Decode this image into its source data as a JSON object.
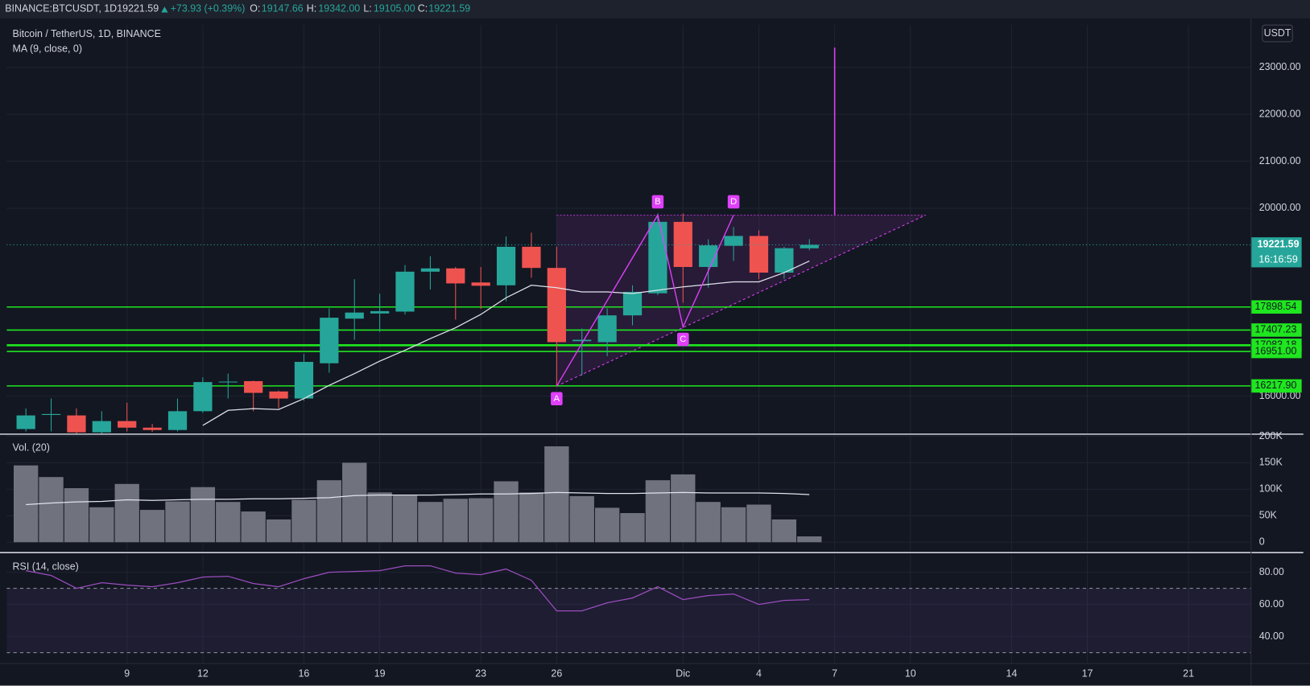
{
  "header": {
    "symbol": "BINANCE:BTCUSDT, 1D",
    "last": "19221.59",
    "change": "+73.93 (+0.39%)",
    "o_label": "O:",
    "o": "19147.66",
    "h_label": "H:",
    "h": "19342.00",
    "l_label": "L:",
    "l": "19105.00",
    "c_label": "C:",
    "c": "19221.59"
  },
  "chart_data": [
    {
      "type": "candlestick",
      "title": "Bitcoin / TetherUS, 1D, BINANCE",
      "currency": "USDT",
      "up_color": "#26a69a",
      "down_color": "#ef5350",
      "candles": {
        "open": [
          15300,
          15600,
          15590,
          15230,
          15470,
          15330,
          15280,
          15680,
          16300,
          16320,
          16100,
          15950,
          16700,
          17650,
          17760,
          17800,
          18650,
          18720,
          18420,
          18360,
          19180,
          18730,
          17170,
          17150,
          17720,
          18190,
          19710,
          18750,
          19200,
          19410,
          18630,
          19147.66
        ],
        "high": [
          15740,
          15950,
          15740,
          15680,
          15860,
          15410,
          15950,
          16400,
          16480,
          16330,
          16120,
          16900,
          17870,
          18490,
          18180,
          18790,
          18980,
          18750,
          18750,
          19400,
          19480,
          19180,
          17440,
          17870,
          18360,
          19890,
          19890,
          19340,
          19600,
          19530,
          19180,
          19342
        ],
        "low": [
          15250,
          15250,
          15200,
          15200,
          15250,
          15240,
          15250,
          15650,
          15950,
          15680,
          15740,
          15900,
          16500,
          17200,
          17370,
          17740,
          18270,
          17630,
          17860,
          18020,
          18520,
          16210,
          16440,
          16850,
          17510,
          18150,
          17990,
          18310,
          18880,
          18490,
          18500,
          19105
        ],
        "close": [
          15590,
          15620,
          15230,
          15470,
          15330,
          15280,
          15680,
          16300,
          16310,
          16070,
          15950,
          16730,
          17670,
          17780,
          17810,
          18650,
          18720,
          18400,
          18350,
          19180,
          18730,
          17150,
          17200,
          17720,
          18220,
          19710,
          18750,
          19210,
          19410,
          18630,
          19150,
          19221.59
        ]
      },
      "series": [
        {
          "name": "MA (9, close, 0)",
          "color": "#e0e3eb",
          "values": [
            null,
            null,
            null,
            null,
            null,
            null,
            null,
            15378,
            15698,
            15734,
            15716,
            15947,
            16231,
            16480,
            16746,
            16977,
            17225,
            17456,
            17740,
            18095,
            18362,
            18309,
            18220,
            18220,
            18184,
            18255,
            18327,
            18380,
            18433,
            18433,
            18628,
            18877
          ]
        }
      ],
      "levels": {
        "color": "#1fe61f",
        "values": [
          17898.54,
          17407.23,
          17083.18,
          16951,
          16217.9
        ],
        "value_labels": [
          "17898.54",
          "17407.23",
          "17083.18",
          "16951.00",
          "16217.90"
        ]
      },
      "last_label": "19221.59",
      "countdown": "16:16:59",
      "pattern": {
        "color": "#e040fb",
        "points": [
          {
            "label": "A",
            "x": 21,
            "y": 16213
          },
          {
            "label": "B",
            "x": 25,
            "y": 19854
          },
          {
            "label": "C",
            "x": 26,
            "y": 17474
          },
          {
            "label": "D",
            "x": 28,
            "y": 19854
          }
        ],
        "apex_x": 35.6,
        "spike": {
          "x": 32,
          "y": [
            19854,
            23420
          ]
        }
      },
      "ylim": [
        15200,
        23900
      ],
      "yticks": [
        {
          "value": 16000,
          "label": "16000.00"
        },
        {
          "value": 20000,
          "label": "20000.00"
        },
        {
          "value": 21000,
          "label": "21000.00"
        },
        {
          "value": 22000,
          "label": "22000.00"
        },
        {
          "value": 23000,
          "label": "23000.00"
        }
      ]
    },
    {
      "type": "bar",
      "title": "Vol. (20)",
      "color": "#70737d",
      "values": [
        145000,
        123000,
        102000,
        66000,
        110000,
        61000,
        77000,
        104000,
        76000,
        58000,
        43000,
        80000,
        117000,
        150000,
        94000,
        88000,
        76000,
        82000,
        83000,
        115000,
        94000,
        181000,
        87000,
        65000,
        55000,
        117000,
        128000,
        76000,
        66000,
        71000,
        43000,
        11000
      ],
      "series": [
        {
          "color": "#e0e3eb",
          "values": [
            71000,
            74000,
            76000,
            77000,
            80000,
            79000,
            80000,
            81000,
            81000,
            82000,
            82000,
            83000,
            84000,
            88000,
            89000,
            89000,
            89000,
            90000,
            91000,
            91000,
            92000,
            94000,
            93000,
            92000,
            92000,
            93000,
            94000,
            93000,
            93000,
            93000,
            92000,
            90000
          ]
        }
      ],
      "ylim": [
        -15700,
        200000
      ],
      "yticks": [
        0,
        {
          "value": 50000,
          "label": "50K"
        },
        {
          "value": 100000,
          "label": "100K"
        },
        {
          "value": 150000,
          "label": "150K"
        },
        {
          "value": 200000,
          "label": "200K"
        }
      ]
    },
    {
      "type": "line",
      "title": "RSI (14, close)",
      "series": [
        {
          "color": "#9b4dbf",
          "values": [
            81,
            78,
            70,
            73.5,
            72,
            71,
            73.5,
            77,
            77.5,
            73,
            71,
            76,
            80,
            80.5,
            81,
            84,
            84,
            79.5,
            78.5,
            82,
            75,
            56,
            56,
            61,
            64,
            71,
            63,
            65.5,
            66.5,
            60,
            62.5,
            63
          ]
        }
      ],
      "band": [
        30,
        70
      ],
      "band_color": "#7e57c2",
      "ylim": [
        23.5,
        90.9
      ],
      "yticks": [
        {
          "value": 40,
          "label": "40.00"
        },
        {
          "value": 60,
          "label": "60.00"
        },
        {
          "value": 80,
          "label": "80.00"
        }
      ],
      "xlim": [
        -0.76,
        48.46
      ],
      "xticks": [
        {
          "value": 4,
          "label": "9"
        },
        {
          "value": 7,
          "label": "12"
        },
        {
          "value": 11,
          "label": "16"
        },
        {
          "value": 14,
          "label": "19"
        },
        {
          "value": 18,
          "label": "23"
        },
        {
          "value": 21,
          "label": "26"
        },
        {
          "value": 26,
          "label": "Dic"
        },
        {
          "value": 29,
          "label": "4"
        },
        {
          "value": 32,
          "label": "7"
        },
        {
          "value": 35,
          "label": "10"
        },
        {
          "value": 39,
          "label": "14"
        },
        {
          "value": 42,
          "label": "17"
        },
        {
          "value": 46,
          "label": "21"
        }
      ]
    }
  ]
}
